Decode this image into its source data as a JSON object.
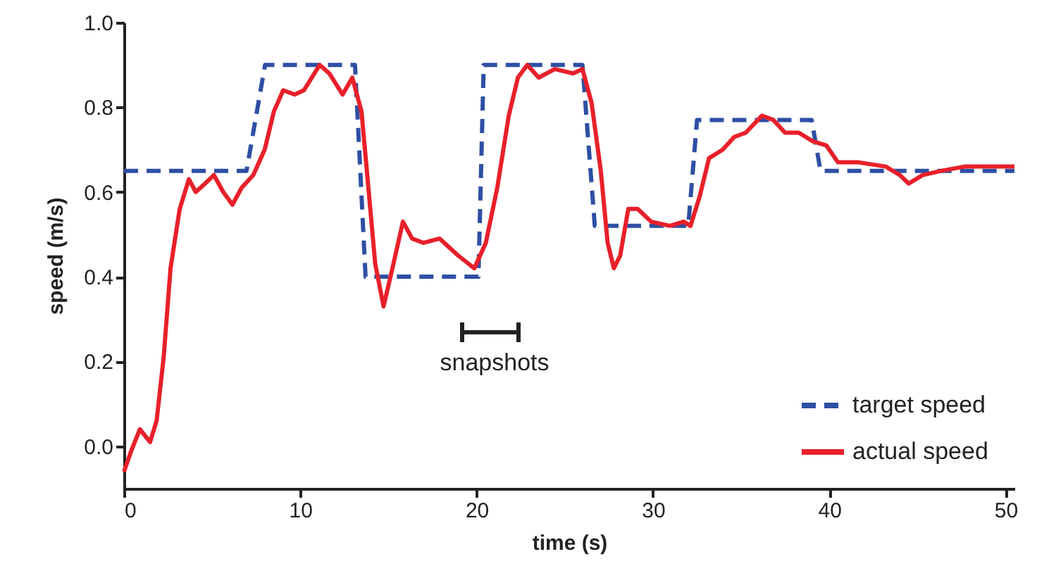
{
  "chart_data": {
    "type": "line",
    "xlabel": "time (s)",
    "ylabel": "speed (m/s)",
    "xlim": [
      0,
      50.5
    ],
    "xticks": [
      0,
      10,
      20,
      30,
      40,
      50
    ],
    "ylim": [
      -0.1,
      1.0
    ],
    "yticks": [
      {
        "value": 0,
        "label": "0.0"
      },
      {
        "value": 0.2,
        "label": "0.2"
      },
      {
        "value": 0.4,
        "label": "0.4"
      },
      {
        "value": 0.6,
        "label": "0.6"
      },
      {
        "value": 0.8,
        "label": "0.8"
      },
      {
        "value": 1.0,
        "label": "1.0"
      }
    ],
    "grid": false,
    "legend": "bottom right",
    "marker": "none",
    "annotations": [
      "snapshots"
    ],
    "series": [
      {
        "name": "target speed",
        "color": "#2e4fa3",
        "line_style": "dashed",
        "x": [
          0,
          6.95,
          8.0,
          13.1,
          13.7,
          20.1,
          20.4,
          26.0,
          26.7,
          32.0,
          32.5,
          39.0,
          39.5,
          50.5
        ],
        "values": [
          0.65,
          0.65,
          0.9,
          0.9,
          0.4,
          0.4,
          0.9,
          0.9,
          0.52,
          0.52,
          0.77,
          0.77,
          0.65,
          0.65
        ]
      },
      {
        "name": "actual speed",
        "color": "#e8202a",
        "line_style": "solid",
        "x": [
          0,
          0.42,
          0.9,
          1.48,
          1.85,
          2.25,
          2.64,
          3.16,
          3.68,
          4.07,
          4.6,
          5.1,
          5.63,
          6.15,
          6.67,
          7.33,
          7.98,
          8.5,
          9.03,
          9.68,
          10.2,
          11.1,
          11.64,
          12.4,
          12.95,
          13.47,
          13.86,
          14.25,
          14.72,
          15.17,
          15.82,
          16.34,
          16.99,
          17.9,
          18.95,
          19.87,
          20.52,
          21.17,
          21.82,
          22.34,
          22.87,
          23.52,
          24.43,
          25.47,
          26.0,
          26.52,
          27.04,
          27.43,
          27.78,
          28.14,
          28.6,
          29.13,
          29.9,
          30.96,
          31.74,
          32.13,
          32.65,
          33.18,
          33.96,
          34.61,
          35.26,
          36.18,
          36.83,
          37.49,
          38.27,
          39.05,
          39.83,
          40.49,
          41.66,
          43.2,
          44.0,
          44.5,
          45.3,
          46.36,
          47.67,
          48.97,
          50.5
        ],
        "values": [
          -0.06,
          -0.01,
          0.04,
          0.01,
          0.06,
          0.21,
          0.42,
          0.56,
          0.63,
          0.6,
          0.62,
          0.64,
          0.6,
          0.57,
          0.61,
          0.64,
          0.7,
          0.79,
          0.84,
          0.83,
          0.84,
          0.9,
          0.88,
          0.83,
          0.87,
          0.79,
          0.61,
          0.43,
          0.33,
          0.41,
          0.53,
          0.49,
          0.48,
          0.49,
          0.45,
          0.42,
          0.48,
          0.61,
          0.78,
          0.87,
          0.9,
          0.87,
          0.89,
          0.88,
          0.89,
          0.81,
          0.65,
          0.48,
          0.42,
          0.45,
          0.56,
          0.56,
          0.53,
          0.52,
          0.53,
          0.52,
          0.59,
          0.68,
          0.7,
          0.73,
          0.74,
          0.78,
          0.77,
          0.74,
          0.74,
          0.72,
          0.71,
          0.67,
          0.67,
          0.66,
          0.64,
          0.62,
          0.64,
          0.65,
          0.66,
          0.66,
          0.66
        ]
      }
    ]
  }
}
